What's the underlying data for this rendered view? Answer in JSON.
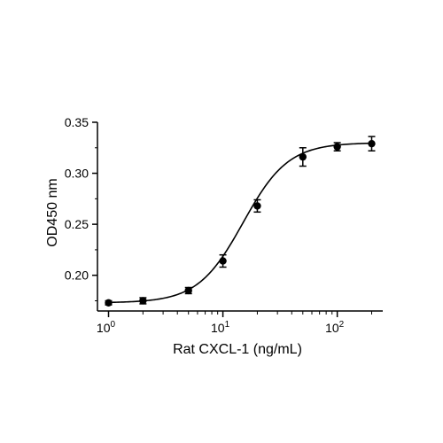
{
  "chart_data": {
    "type": "scatter",
    "xlabel": "Rat CXCL-1 (ng/mL)",
    "ylabel": "OD450 nm",
    "xscale": "log",
    "xlim": [
      0.8,
      250
    ],
    "ylim": [
      0.165,
      0.35
    ],
    "x_ticks": [
      {
        "value": 1,
        "base": "10",
        "exp": "0"
      },
      {
        "value": 10,
        "base": "10",
        "exp": "1"
      },
      {
        "value": 100,
        "base": "10",
        "exp": "2"
      }
    ],
    "y_ticks": [
      {
        "value": 0.2,
        "label": "0.20"
      },
      {
        "value": 0.25,
        "label": "0.25"
      },
      {
        "value": 0.3,
        "label": "0.30"
      },
      {
        "value": 0.35,
        "label": "0.35"
      }
    ],
    "points": [
      {
        "x": 1,
        "y": 0.173,
        "err": 0.002
      },
      {
        "x": 2,
        "y": 0.175,
        "err": 0.003
      },
      {
        "x": 5,
        "y": 0.185,
        "err": 0.003
      },
      {
        "x": 10,
        "y": 0.214,
        "err": 0.006
      },
      {
        "x": 20,
        "y": 0.268,
        "err": 0.006
      },
      {
        "x": 50,
        "y": 0.316,
        "err": 0.009
      },
      {
        "x": 100,
        "y": 0.326,
        "err": 0.004
      },
      {
        "x": 200,
        "y": 0.329,
        "err": 0.007
      }
    ],
    "fit": {
      "model": "4PL",
      "bottom": 0.173,
      "top": 0.33,
      "ec50": 15,
      "hill": 2.2
    },
    "grid": false,
    "legend": "none",
    "colors": {
      "marker": "#000000",
      "line": "#000000"
    }
  }
}
